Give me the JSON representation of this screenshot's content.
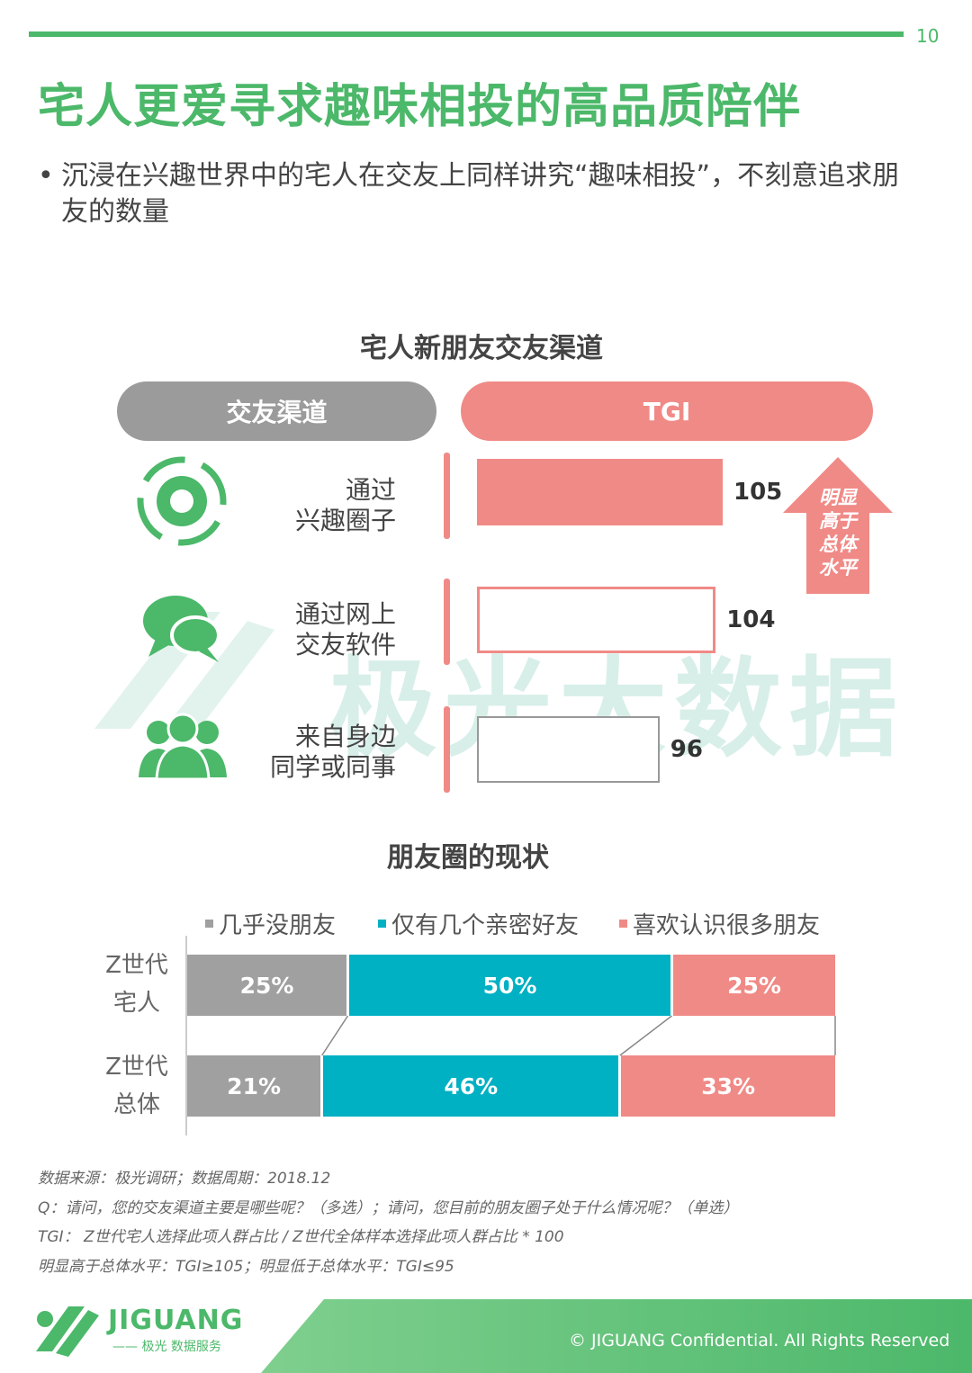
{
  "page_number": "10",
  "title": "宅人更爱寻求趣味相投的高品质陪伴",
  "bullet": "沉浸在兴趣世界中的宅人在交友上同样讲究“趣味相投”，不刻意追求朋友的数量",
  "bullet_dot": "•",
  "watermark": "极光大数据",
  "colors": {
    "green": "#4cb86a",
    "pink": "#f08a86",
    "teal": "#00b0c3",
    "gray": "#a0a0a0"
  },
  "chart_data": [
    {
      "type": "bar",
      "title": "宅人新朋友交友渠道",
      "header_left": "交友渠道",
      "header_right": "TGI",
      "categories": [
        {
          "label_line1": "通过",
          "label_line2": "兴趣圈子",
          "icon": "target-icon"
        },
        {
          "label_line1": "通过网上",
          "label_line2": "交友软件",
          "icon": "chat-bubbles-icon"
        },
        {
          "label_line1": "来自身边",
          "label_line2": "同学或同事",
          "icon": "people-icon"
        }
      ],
      "values": [
        105,
        104,
        96
      ],
      "callout": {
        "lines": [
          "明显",
          "高于",
          "总体",
          "水平"
        ]
      }
    },
    {
      "type": "bar",
      "stacked": true,
      "percent": true,
      "title": "朋友圈的现状",
      "legend": [
        {
          "name": "几乎没朋友",
          "color": "#a0a0a0"
        },
        {
          "name": "仅有几个亲密好友",
          "color": "#00b0c3"
        },
        {
          "name": "喜欢认识很多朋友",
          "color": "#f08a86"
        }
      ],
      "rows": [
        {
          "label_line1": "Z世代",
          "label_line2": "宅人",
          "values": [
            25,
            50,
            25
          ],
          "labels": [
            "25%",
            "50%",
            "25%"
          ]
        },
        {
          "label_line1": "Z世代",
          "label_line2": "总体",
          "values": [
            21,
            46,
            33
          ],
          "labels": [
            "21%",
            "46%",
            "33%"
          ]
        }
      ]
    }
  ],
  "notes": [
    "数据来源：极光调研；数据周期：2018.12",
    "Q：请问，您的交友渠道主要是哪些呢？（多选）；请问，您目前的朋友圈子处于什么情况呢？（单选）",
    "TGI： Z世代宅人选择此项人群占比 / Z世代全体样本选择此项人群占比 * 100",
    "明显高于总体水平：TGI≥105；明显低于总体水平：TGI≤95"
  ],
  "footer": {
    "logo_text": "JIGUANG",
    "logo_sub": "—— 极光 数据服务",
    "copyright": "© JIGUANG Confidential. All Rights Reserved"
  }
}
